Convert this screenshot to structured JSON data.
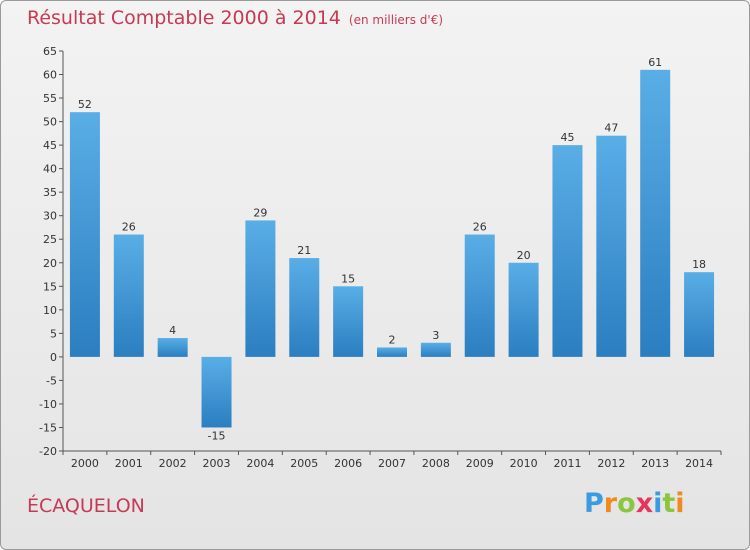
{
  "header": {
    "title": "Résultat Comptable 2000 à 2014",
    "subtitle": "(en milliers d'€)"
  },
  "footer": {
    "commune": "ÉCAQUELON",
    "logo_text": "Proxiti"
  },
  "colors": {
    "title": "#c63a54",
    "bar_top": "#5aaee6",
    "bar_bottom": "#2b7ec0"
  },
  "chart_data": {
    "type": "bar",
    "title": "Résultat Comptable 2000 à 2014",
    "subtitle": "(en milliers d'€)",
    "xlabel": "",
    "ylabel": "",
    "categories": [
      "2000",
      "2001",
      "2002",
      "2003",
      "2004",
      "2005",
      "2006",
      "2007",
      "2008",
      "2009",
      "2010",
      "2011",
      "2012",
      "2013",
      "2014"
    ],
    "values": [
      52,
      26,
      4,
      -15,
      29,
      21,
      15,
      2,
      3,
      26,
      20,
      45,
      47,
      61,
      18
    ],
    "ylim": [
      -20,
      65
    ],
    "yticks": [
      65,
      60,
      55,
      50,
      45,
      40,
      35,
      30,
      25,
      20,
      15,
      10,
      5,
      0,
      -5,
      -10,
      -15,
      -20
    ],
    "grid": false,
    "legend": "none"
  }
}
